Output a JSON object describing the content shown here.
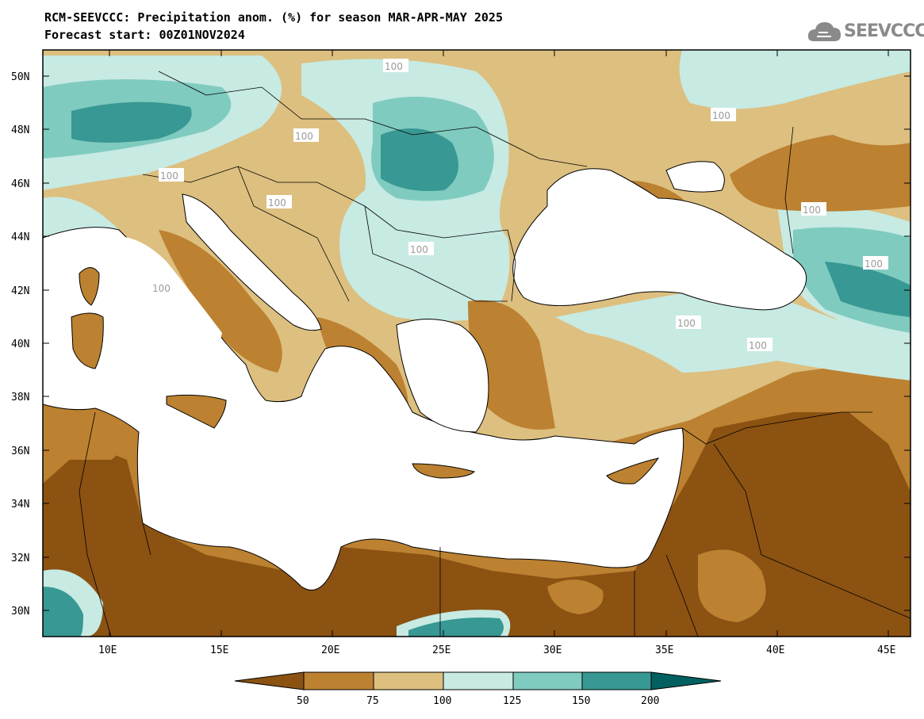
{
  "header": {
    "title": "RCM-SEEVCCC: Precipitation anom. (%) for season MAR-APR-MAY 2025",
    "subtitle": "Forecast start: 00Z01NOV2024",
    "logo_text": "SEEVCCC"
  },
  "map": {
    "projection": "lat-lon",
    "lon_range": [
      7,
      46
    ],
    "lat_range": [
      29,
      51
    ],
    "lat_ticks": [
      "50N",
      "48N",
      "46N",
      "44N",
      "42N",
      "40N",
      "38N",
      "36N",
      "34N",
      "32N",
      "30N"
    ],
    "lon_ticks": [
      "10E",
      "15E",
      "20E",
      "25E",
      "30E",
      "35E",
      "40E",
      "45E"
    ],
    "contour_labels": [
      "100",
      "100",
      "100",
      "100",
      "100",
      "100",
      "100",
      "100",
      "100",
      "100",
      "100"
    ],
    "colors": {
      "below_50": "#8b5212",
      "50_75": "#bc8131",
      "75_100": "#ddbf7f",
      "100_125": "#c7eae3",
      "125_150": "#7fcbbf",
      "150_200": "#389893",
      "above_200": "#036060",
      "sea": "#ffffff"
    }
  },
  "colorbar": {
    "ticks": [
      "50",
      "75",
      "100",
      "125",
      "150",
      "200"
    ],
    "colors": [
      "#8b5212",
      "#bc8131",
      "#ddbf7f",
      "#c7eae3",
      "#7fcbbf",
      "#389893",
      "#036060"
    ]
  }
}
